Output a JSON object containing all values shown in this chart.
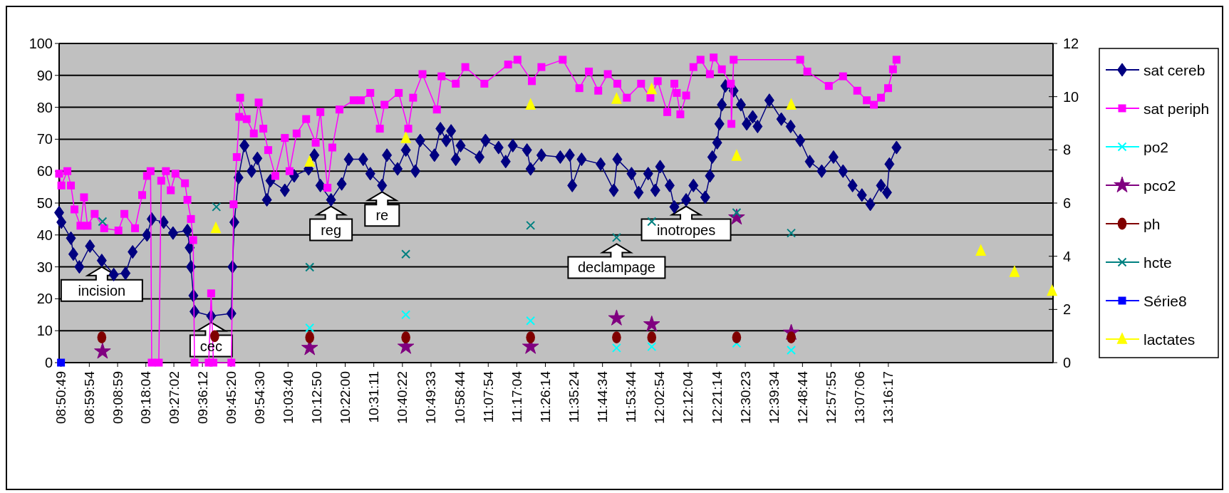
{
  "chart_data": {
    "type": "line",
    "xlim": [
      8.837,
      14.152
    ],
    "ylim": [
      0,
      100
    ],
    "yticks": [
      0,
      10,
      20,
      30,
      40,
      50,
      60,
      70,
      80,
      90,
      100
    ],
    "y2lim": [
      0,
      12
    ],
    "y2ticks": [
      0,
      2,
      4,
      6,
      8,
      10,
      12
    ],
    "grid": "y",
    "legend": "right",
    "xticks": [
      {
        "value": 8.8469,
        "label": "08:50:49"
      },
      {
        "value": 8.9983,
        "label": "08:59:54"
      },
      {
        "value": 9.1497,
        "label": "09:08:59"
      },
      {
        "value": 9.3011,
        "label": "09:18:04"
      },
      {
        "value": 9.4506,
        "label": "09:27:02"
      },
      {
        "value": 9.6033,
        "label": "09:36:12"
      },
      {
        "value": 9.7556,
        "label": "09:45:20"
      },
      {
        "value": 9.9083,
        "label": "09:54:30"
      },
      {
        "value": 10.0611,
        "label": "10:03:40"
      },
      {
        "value": 10.2139,
        "label": "10:12:50"
      },
      {
        "value": 10.3667,
        "label": "10:22:00"
      },
      {
        "value": 10.5197,
        "label": "10:31:11"
      },
      {
        "value": 10.6728,
        "label": "10:40:22"
      },
      {
        "value": 10.8258,
        "label": "10:49:33"
      },
      {
        "value": 10.9789,
        "label": "10:58:44"
      },
      {
        "value": 11.1317,
        "label": "11:07:54"
      },
      {
        "value": 11.2844,
        "label": "11:17:04"
      },
      {
        "value": 11.4372,
        "label": "11:26:14"
      },
      {
        "value": 11.59,
        "label": "11:35:24"
      },
      {
        "value": 11.7428,
        "label": "11:44:34"
      },
      {
        "value": 11.8956,
        "label": "11:53:44"
      },
      {
        "value": 12.0483,
        "label": "12:02:54"
      },
      {
        "value": 12.2011,
        "label": "12:12:04"
      },
      {
        "value": 12.3539,
        "label": "12:21:14"
      },
      {
        "value": 12.5064,
        "label": "12:30:23"
      },
      {
        "value": 12.6594,
        "label": "12:39:34"
      },
      {
        "value": 12.8122,
        "label": "12:48:44"
      },
      {
        "value": 12.9653,
        "label": "12:57:55"
      },
      {
        "value": 13.1183,
        "label": "13:07:06"
      },
      {
        "value": 13.2714,
        "label": "13:16:17"
      }
    ],
    "series": [
      {
        "name": "sat cereb",
        "marker": "diamond",
        "color": "#000080",
        "x": [
          8.837,
          8.849,
          8.9,
          8.913,
          8.945,
          9.002,
          9.065,
          9.129,
          9.192,
          9.23,
          9.307,
          9.332,
          9.396,
          9.446,
          9.523,
          9.535,
          9.542,
          9.555,
          9.561,
          9.65,
          9.758,
          9.764,
          9.774,
          9.796,
          9.828,
          9.866,
          9.897,
          9.948,
          9.967,
          10.044,
          10.094,
          10.171,
          10.202,
          10.234,
          10.291,
          10.348,
          10.386,
          10.463,
          10.501,
          10.564,
          10.59,
          10.647,
          10.691,
          10.742,
          10.768,
          10.844,
          10.876,
          10.907,
          10.933,
          10.958,
          10.984,
          11.085,
          11.117,
          11.187,
          11.225,
          11.263,
          11.339,
          11.358,
          11.416,
          11.517,
          11.568,
          11.581,
          11.631,
          11.733,
          11.803,
          11.822,
          11.898,
          11.936,
          11.987,
          12.025,
          12.051,
          12.102,
          12.127,
          12.19,
          12.229,
          12.292,
          12.317,
          12.33,
          12.356,
          12.368,
          12.381,
          12.4,
          12.444,
          12.483,
          12.514,
          12.546,
          12.572,
          12.635,
          12.699,
          12.749,
          12.8,
          12.851,
          12.915,
          12.978,
          13.029,
          13.08,
          13.13,
          13.175,
          13.232,
          13.264,
          13.277,
          13.315
        ],
        "values": [
          47,
          44,
          39,
          34,
          30,
          36.5,
          32,
          27.6,
          28,
          34.7,
          40,
          45,
          44,
          40.6,
          41.4,
          36,
          30,
          21,
          16,
          14.6,
          15.4,
          30,
          44,
          58,
          68,
          60,
          64,
          51,
          57,
          54,
          58.5,
          60.7,
          65,
          55.5,
          51,
          56,
          63.7,
          63.7,
          59.2,
          55.5,
          65,
          60.7,
          66.6,
          60,
          69.6,
          65,
          73.3,
          69.6,
          72.6,
          63.7,
          68,
          64.4,
          69.6,
          67.4,
          63,
          68,
          66.6,
          60.7,
          65,
          64.4,
          65,
          55.5,
          63.7,
          62.2,
          54,
          63.7,
          59.2,
          53.3,
          59.2,
          54,
          61.4,
          55.5,
          48.8,
          51,
          55.5,
          51.8,
          58.5,
          64.4,
          68.9,
          74.8,
          80.8,
          86.7,
          85.2,
          80.8,
          74.8,
          77,
          74,
          82.2,
          76.3,
          74,
          69.6,
          63,
          60,
          64.4,
          60,
          55.5,
          52.5,
          49.6,
          55.5,
          53.3,
          62.2,
          67.4
        ]
      },
      {
        "name": "sat periph",
        "marker": "square",
        "color": "#ff00ff",
        "x": [
          8.837,
          8.849,
          8.881,
          8.9,
          8.919,
          8.951,
          8.97,
          8.989,
          9.027,
          9.078,
          9.154,
          9.186,
          9.243,
          9.281,
          9.307,
          9.326,
          9.332,
          9.37,
          9.383,
          9.408,
          9.434,
          9.459,
          9.51,
          9.523,
          9.542,
          9.554,
          9.561,
          9.637,
          9.65,
          9.662,
          9.758,
          9.77,
          9.787,
          9.8,
          9.805,
          9.84,
          9.878,
          9.904,
          9.929,
          9.955,
          9.993,
          10.044,
          10.069,
          10.107,
          10.158,
          10.209,
          10.234,
          10.272,
          10.298,
          10.336,
          10.412,
          10.45,
          10.501,
          10.552,
          10.577,
          10.653,
          10.704,
          10.73,
          10.78,
          10.857,
          10.882,
          10.958,
          11.009,
          11.111,
          11.238,
          11.288,
          11.365,
          11.416,
          11.53,
          11.619,
          11.67,
          11.72,
          11.771,
          11.822,
          11.873,
          11.949,
          11.999,
          12.038,
          12.089,
          12.127,
          12.14,
          12.159,
          12.19,
          12.229,
          12.267,
          12.317,
          12.337,
          12.381,
          12.429,
          12.432,
          12.444,
          12.8,
          12.838,
          12.953,
          13.029,
          13.105,
          13.156,
          13.194,
          13.232,
          13.27,
          13.296,
          13.315
        ],
        "values": [
          59.2,
          55.5,
          60,
          55.5,
          48,
          42.9,
          51.8,
          42.9,
          46.6,
          42.1,
          41.4,
          46.6,
          42.1,
          52.5,
          58.5,
          60,
          0,
          0,
          57,
          60,
          54,
          59.2,
          56.2,
          51,
          45,
          38.4,
          0,
          0,
          21.7,
          0,
          0,
          49.6,
          64.4,
          77,
          83,
          76.3,
          71.8,
          81.5,
          73.3,
          66.6,
          58.5,
          70.4,
          60,
          71.8,
          76.3,
          68.9,
          78.5,
          54.8,
          67.4,
          79.3,
          82.2,
          82.2,
          84.5,
          73.3,
          80.8,
          84.5,
          73.3,
          83,
          90.4,
          79.3,
          89.7,
          87.4,
          92.6,
          87.4,
          93.4,
          94.9,
          88.2,
          92.6,
          94.9,
          86,
          91.2,
          85.2,
          90.4,
          87.4,
          83,
          87.4,
          83,
          88.2,
          78.5,
          87.4,
          84.5,
          77.8,
          83.7,
          92.6,
          94.9,
          90.4,
          95.6,
          91.9,
          87.4,
          74.8,
          94.9,
          94.9,
          91.2,
          86.7,
          89.7,
          85.2,
          82.2,
          80.8,
          83,
          86,
          91.9,
          94.9
        ]
      },
      {
        "name": "po2",
        "type": "scatter",
        "marker": "cross",
        "color": "#00ffff",
        "x": [
          10.177,
          10.691,
          11.358,
          11.818,
          12.006,
          12.46,
          12.752
        ],
        "values": [
          10.9,
          15,
          13.1,
          4.6,
          5,
          6.1,
          3.9
        ]
      },
      {
        "name": "pco2",
        "type": "scatter",
        "marker": "star",
        "color": "#800080",
        "x": [
          9.069,
          10.177,
          10.691,
          11.358,
          11.818,
          12.006,
          12.46,
          12.752
        ],
        "values": [
          3.5,
          4.6,
          5,
          5,
          13.9,
          12,
          45.5,
          9.4
        ]
      },
      {
        "name": "ph",
        "type": "scatter",
        "marker": "circle",
        "color": "#800000",
        "x": [
          9.065,
          9.669,
          10.177,
          10.691,
          11.358,
          11.818,
          12.006,
          12.46,
          12.752
        ],
        "values": [
          7.9,
          8.3,
          7.9,
          7.9,
          7.9,
          7.9,
          7.9,
          7.9,
          7.9
        ]
      },
      {
        "name": "hcte",
        "type": "scatter",
        "marker": "cross",
        "color": "#008080",
        "x": [
          9.069,
          9.678,
          10.177,
          10.691,
          11.358,
          11.818,
          12.006,
          12.46,
          12.752
        ],
        "values": [
          44.2,
          48.8,
          29.9,
          34,
          43,
          39.2,
          44.2,
          47,
          40.6
        ]
      },
      {
        "name": "Série8",
        "type": "scatter",
        "marker": "square",
        "color": "#0000ff",
        "x": [
          8.847
        ],
        "values": [
          0
        ]
      },
      {
        "name": "lactates",
        "type": "scatter",
        "marker": "triangle",
        "color": "#ffff00",
        "axis": "y2",
        "x": [
          9.675,
          10.177,
          10.691,
          11.358,
          11.818,
          12.006,
          12.46,
          12.752,
          13.766,
          13.946,
          14.147
        ],
        "values": [
          5.05,
          7.55,
          8.44,
          9.69,
          9.91,
          10.27,
          7.77,
          9.69,
          4.2,
          3.4,
          2.69
        ]
      }
    ],
    "annotations": [
      {
        "text": "incision",
        "x": 9.065,
        "y": 32
      },
      {
        "text": "cec",
        "x": 9.65,
        "y": 14.6
      },
      {
        "text": "reg",
        "x": 10.291,
        "y": 51
      },
      {
        "text": "re",
        "x": 10.564,
        "y": 55.5
      },
      {
        "text": "declampage",
        "x": 11.818,
        "y": 39.2
      },
      {
        "text": "inotropes",
        "x": 12.19,
        "y": 51
      }
    ]
  }
}
